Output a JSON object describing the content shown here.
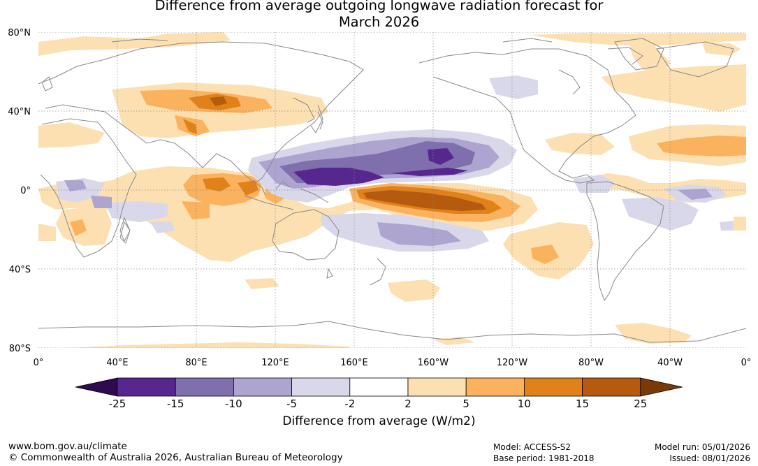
{
  "title_line1": "Difference from average outgoing longwave radiation forecast for",
  "title_line2": "March 2026",
  "lat_labels": [
    "80°N",
    "40°N",
    "0°",
    "40°S",
    "80°S"
  ],
  "lon_labels": [
    "0°",
    "40°E",
    "80°E",
    "120°E",
    "160°E",
    "160°W",
    "120°W",
    "80°W",
    "40°W",
    "0°"
  ],
  "colorbar": {
    "ticks": [
      "-25",
      "-15",
      "-10",
      "-5",
      "-2",
      "2",
      "5",
      "10",
      "15",
      "25"
    ],
    "colors": [
      "#2e0b4f",
      "#57278f",
      "#7f6fad",
      "#ada5cf",
      "#d8d8ea",
      "#ffffff",
      "#fde0b2",
      "#fbb25e",
      "#e0811a",
      "#b45b0f",
      "#7a3908"
    ],
    "label": "Difference from average (W/m2)"
  },
  "footer": {
    "url": "www.bom.gov.au/climate",
    "copyright": "© Commonwealth of Australia 2026, Australian Bureau of Meteorology",
    "model": "Model: ACCESS-S2",
    "base_period": "Base period: 1981-2018",
    "model_run": "Model run: 05/01/2026",
    "issued": "Issued: 08/01/2026"
  },
  "map_colors": {
    "coast": "#888888",
    "grid": "#888888"
  }
}
